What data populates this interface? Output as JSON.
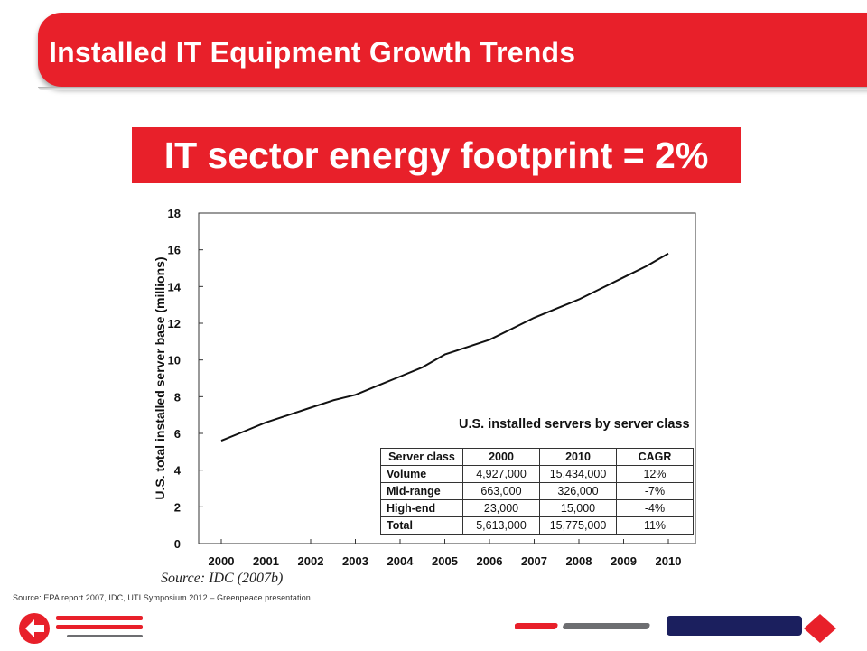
{
  "slide": {
    "title": "Installed IT Equipment Growth Trends",
    "headline": "IT sector energy footprint = 2%",
    "footer_source": "Source: EPA report 2007, IDC, UTI Symposium 2012 – Greenpeace presentation"
  },
  "chart_data": {
    "type": "line",
    "title": "",
    "xlabel": "",
    "ylabel": "U.S. total installed server base (millions)",
    "x_ticks": [
      "2000",
      "2001",
      "2002",
      "2003",
      "2004",
      "2005",
      "2006",
      "2007",
      "2008",
      "2009",
      "2010"
    ],
    "y_ticks": [
      "0",
      "2",
      "4",
      "6",
      "8",
      "10",
      "12",
      "14",
      "16",
      "18"
    ],
    "xlim": [
      2000,
      2010
    ],
    "ylim": [
      0,
      18
    ],
    "grid": false,
    "series": [
      {
        "name": "",
        "x": [
          2000,
          2000.5,
          2001,
          2001.5,
          2002,
          2002.5,
          2003,
          2003.5,
          2004,
          2004.5,
          2005,
          2005.5,
          2006,
          2006.5,
          2007,
          2007.5,
          2008,
          2008.5,
          2009,
          2009.5,
          2010
        ],
        "y": [
          5.6,
          6.1,
          6.6,
          7.0,
          7.4,
          7.8,
          8.1,
          8.6,
          9.1,
          9.6,
          10.3,
          10.7,
          11.1,
          11.7,
          12.3,
          12.8,
          13.3,
          13.9,
          14.5,
          15.1,
          15.8
        ]
      }
    ],
    "source_note": "Source: IDC (2007b)",
    "inset_table": {
      "title": "U.S. installed servers by server class",
      "headers": [
        "Server class",
        "2000",
        "2010",
        "CAGR"
      ],
      "rows": [
        [
          "Volume",
          "4,927,000",
          "15,434,000",
          "12%"
        ],
        [
          "Mid-range",
          "663,000",
          "326,000",
          "-7%"
        ],
        [
          "High-end",
          "23,000",
          "15,000",
          "-4%"
        ],
        [
          "Total",
          "5,613,000",
          "15,775,000",
          "11%"
        ]
      ]
    }
  },
  "colors": {
    "brand_red": "#e8202a",
    "logo_red": "#e8202a",
    "logo_gray": "#6d6e71",
    "logo_navy": "#1b1f5e"
  },
  "logos": {
    "left_icon": "arrow-badge-icon",
    "right_icon": "red-diamond-icon"
  }
}
